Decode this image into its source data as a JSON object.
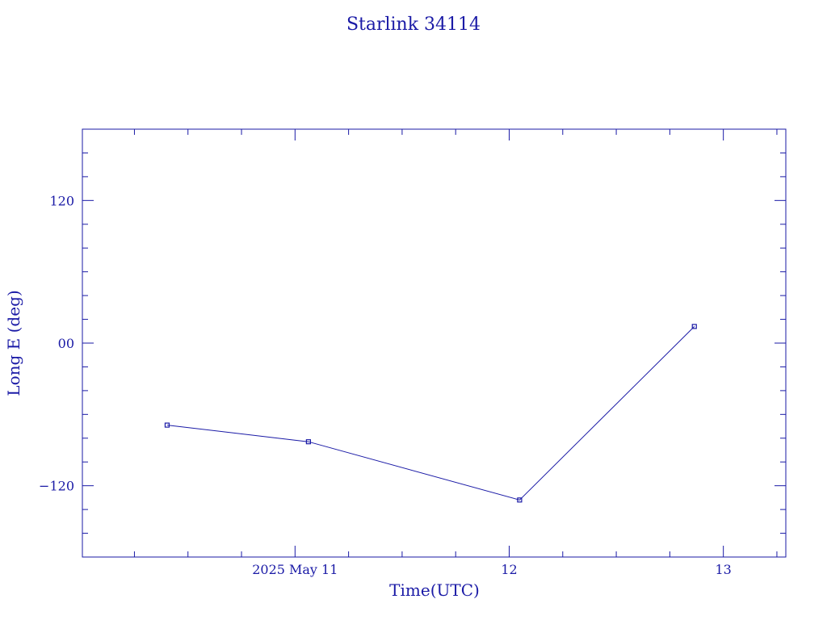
{
  "colors": {
    "ink": "#1a1aa6",
    "background": "#ffffff"
  },
  "chart_data": {
    "type": "line",
    "title": "Starlink 34114",
    "xlabel": "Time(UTC)",
    "ylabel": "Long E (deg)",
    "xlim": [
      "2025-05-10T00:10",
      "2025-05-13T07:00"
    ],
    "ylim": [
      -180,
      180
    ],
    "x_ticks": [
      {
        "value": "2025-05-11T00:00",
        "label": "2025 May 11"
      },
      {
        "value": "2025-05-12T00:00",
        "label": "12"
      },
      {
        "value": "2025-05-13T00:00",
        "label": "13"
      }
    ],
    "y_ticks": [
      {
        "value": 120,
        "label": "120"
      },
      {
        "value": 0,
        "label": "00"
      },
      {
        "value": -120,
        "label": "−120"
      }
    ],
    "grid": false,
    "legend": "none",
    "series": [
      {
        "points": [
          {
            "x": "2025-05-10T09:40",
            "y": -69
          },
          {
            "x": "2025-05-11T01:30",
            "y": -83
          },
          {
            "x": "2025-05-12T01:10",
            "y": -132
          },
          {
            "x": "2025-05-12T20:45",
            "y": 14
          }
        ]
      }
    ]
  }
}
